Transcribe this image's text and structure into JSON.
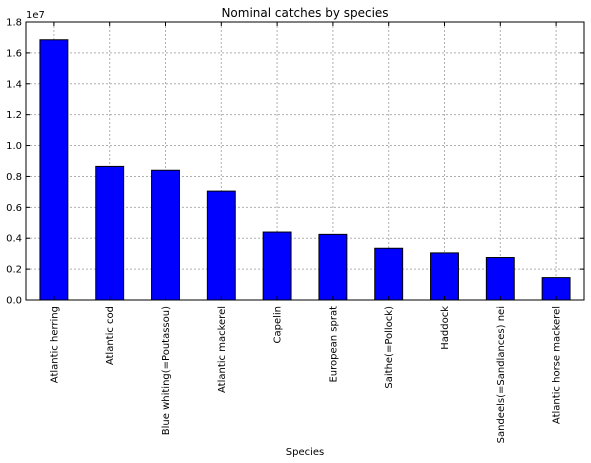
{
  "chart_data": {
    "type": "bar",
    "title": "Nominal catches by species",
    "xlabel": "Species",
    "ylabel": "",
    "y_offset_label": "1e7",
    "categories": [
      "Atlantic herring",
      "Atlantic cod",
      "Blue whiting(=Poutassou)",
      "Atlantic mackerel",
      "Capelin",
      "European sprat",
      "Saithe(=Pollock)",
      "Haddock",
      "Sandeels(=Sandlances) nei",
      "Atlantic horse mackerel"
    ],
    "values": [
      16850000,
      8650000,
      8400000,
      7050000,
      4400000,
      4250000,
      3350000,
      3050000,
      2750000,
      1450000
    ],
    "ylim": [
      0,
      18000000
    ],
    "yticks": [
      0,
      2000000,
      4000000,
      6000000,
      8000000,
      10000000,
      12000000,
      14000000,
      16000000,
      18000000
    ],
    "ytick_labels": [
      "0.0",
      "0.2",
      "0.4",
      "0.6",
      "0.8",
      "1.0",
      "1.2",
      "1.4",
      "1.6",
      "1.8"
    ],
    "grid": true,
    "bar_color": "#0000ff",
    "edge_color": "#000000",
    "legend": false
  }
}
